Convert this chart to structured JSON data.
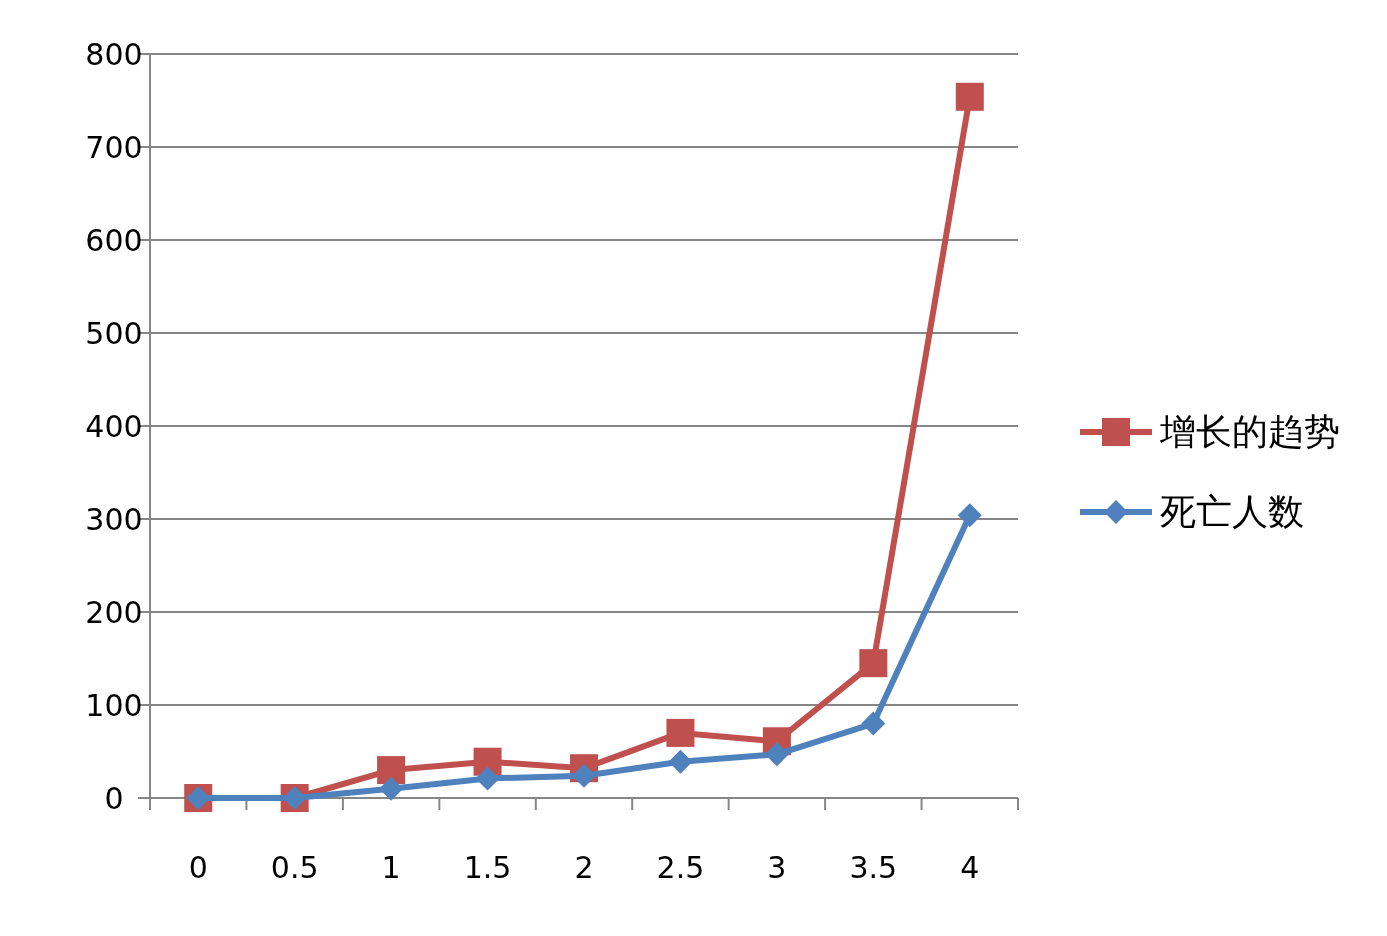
{
  "chart_data": {
    "type": "line",
    "categories": [
      "0",
      "0.5",
      "1",
      "1.5",
      "2",
      "2.5",
      "3",
      "3.5",
      "4"
    ],
    "series": [
      {
        "name": "增长的趋势",
        "color": "#c0504d",
        "marker": "square",
        "values": [
          0,
          0,
          30,
          39,
          32,
          70,
          61,
          145,
          754
        ]
      },
      {
        "name": "死亡人数",
        "color": "#4f81bd",
        "marker": "diamond",
        "values": [
          0,
          0,
          10,
          21,
          24,
          39,
          47,
          80,
          304
        ]
      }
    ],
    "ylim": [
      0,
      800
    ],
    "yticks": [
      0,
      100,
      200,
      300,
      400,
      500,
      600,
      700,
      800
    ],
    "grid": "y",
    "legend": "right",
    "line_style": "solid"
  }
}
